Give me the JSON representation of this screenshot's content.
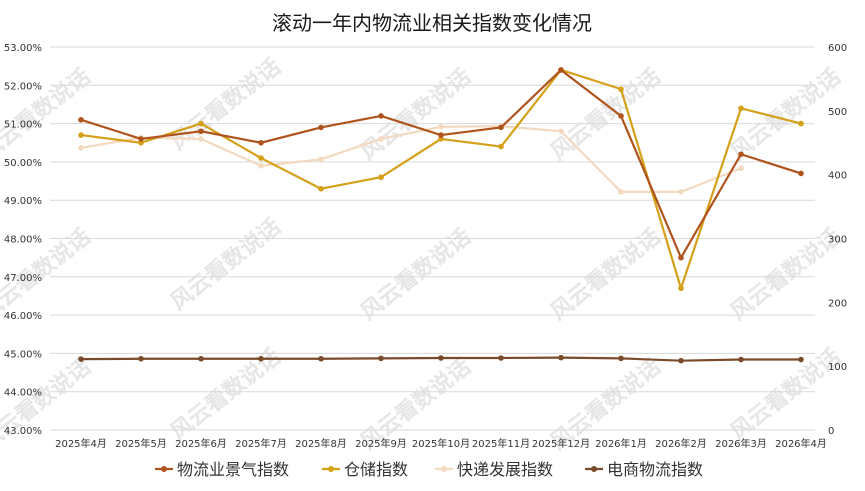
{
  "chart_data": {
    "type": "line",
    "title": "滚动一年内物流业相关指数变化情况",
    "categories": [
      "2025年4月",
      "2025年5月",
      "2025年6月",
      "2025年7月",
      "2025年8月",
      "2025年9月",
      "2025年10月",
      "2025年11月",
      "2025年12月",
      "2026年1月",
      "2026年2月",
      "2026年3月",
      "2026年4月"
    ],
    "y_left": {
      "ticks": [
        "53.00%",
        "52.00%",
        "51.00%",
        "50.00%",
        "49.00%",
        "48.00%",
        "47.00%",
        "46.00%",
        "45.00%",
        "44.00%",
        "43.00%"
      ],
      "ylim": [
        43,
        53
      ]
    },
    "y_right": {
      "ticks": [
        "600",
        "500",
        "400",
        "300",
        "200",
        "100",
        "0"
      ],
      "ylim": [
        0,
        600
      ]
    },
    "grid": true,
    "legend_position": "bottom",
    "watermark": "风云看数说话",
    "series": [
      {
        "name": "物流业景气指数",
        "axis": "left",
        "color": "#b0541e",
        "values": [
          51.1,
          50.6,
          50.8,
          50.5,
          50.9,
          51.2,
          50.7,
          50.9,
          52.4,
          51.2,
          47.5,
          50.2,
          49.7
        ]
      },
      {
        "name": "仓储指数",
        "axis": "left",
        "color": "#d4a017",
        "values": [
          50.7,
          50.5,
          51.0,
          50.1,
          49.3,
          49.6,
          50.6,
          50.4,
          52.4,
          51.9,
          46.7,
          51.4,
          51.0
        ]
      },
      {
        "name": "快递发展指数",
        "axis": "right",
        "color": "#f3d9c0",
        "values": [
          442,
          458,
          456,
          414,
          424,
          456,
          475,
          476,
          468,
          373,
          373,
          410,
          null
        ]
      },
      {
        "name": "电商物流指数",
        "axis": "left",
        "color": "#7a4b2a",
        "values": [
          44.85,
          44.86,
          44.86,
          44.86,
          44.86,
          44.87,
          44.88,
          44.88,
          44.89,
          44.87,
          44.81,
          44.84,
          44.84
        ]
      }
    ]
  }
}
